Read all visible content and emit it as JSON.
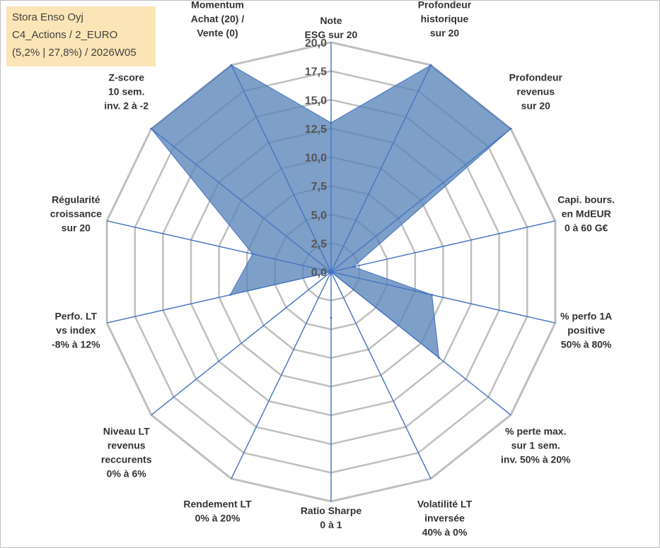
{
  "info_box": {
    "line1": "Stora Enso Oyj",
    "line2": "C4_Actions / 2_EURO",
    "line3": "(5,2% | 27,8%) / 2026W05"
  },
  "colors": {
    "fill": "#5a84b8",
    "line": "#4472c4",
    "grid": "#bfbfbf",
    "info_bg": "#fbe5b6"
  },
  "chart_data": {
    "type": "radar",
    "title": "",
    "rmin": 0,
    "rmax": 20,
    "ticks": [
      "0,0",
      "2,5",
      "5,0",
      "7,5",
      "10,0",
      "12,5",
      "15,0",
      "17,5",
      "20,0"
    ],
    "categories": [
      [
        "Note",
        "ESG sur 20"
      ],
      [
        "Profondeur",
        "historique",
        "sur 20"
      ],
      [
        "Profondeur",
        "revenus",
        "sur 20"
      ],
      [
        "Capi. bours.",
        "en MdEUR",
        "0 à 60 G€"
      ],
      [
        "% perfo 1A",
        "positive",
        "50% à 80%"
      ],
      [
        "% perte max.",
        "sur 1 sem.",
        "inv. 50% à 20%"
      ],
      [
        "Volatilité LT",
        "inversée",
        "40% à 0%"
      ],
      [
        "Ratio Sharpe",
        "0 à 1"
      ],
      [
        "Rendement LT",
        "0% à 20%"
      ],
      [
        "Niveau LT",
        "revenus",
        "reccurents",
        "0% à 6%"
      ],
      [
        "Perfo. LT",
        "vs index",
        "-8% à 12%"
      ],
      [
        "Régularité",
        "croissance",
        "sur 20"
      ],
      [
        "Z-score",
        "10 sem.",
        "inv. 2 à -2"
      ],
      [
        "Momentum",
        "Achat (20) /",
        "Vente (0)"
      ]
    ],
    "series": [
      {
        "name": "Stora Enso Oyj",
        "values": [
          13,
          20,
          20,
          2,
          9,
          12,
          0,
          4,
          0,
          0,
          9,
          7,
          20,
          20
        ]
      }
    ]
  }
}
